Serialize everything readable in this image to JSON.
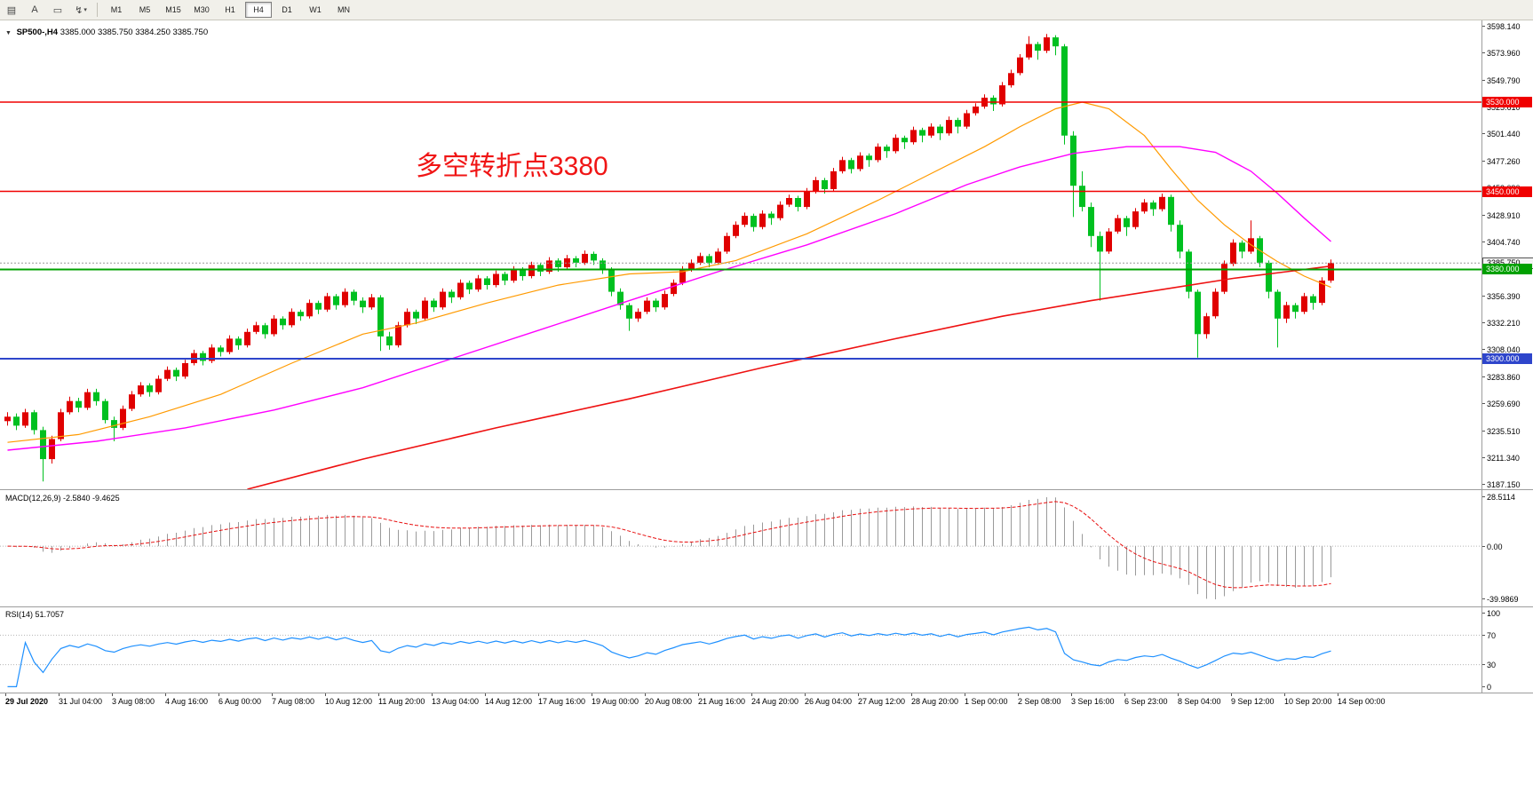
{
  "toolbar": {
    "icons": [
      {
        "name": "chart-grid-icon",
        "glyph": "▤"
      },
      {
        "name": "text-tool-icon",
        "glyph": "A"
      },
      {
        "name": "frame-tool-icon",
        "glyph": "▭"
      },
      {
        "name": "zigzag-indicator-icon",
        "glyph": "↯"
      }
    ],
    "zigzag_caret": "▾",
    "timeframes": [
      {
        "label": "M1",
        "active": false
      },
      {
        "label": "M5",
        "active": false
      },
      {
        "label": "M15",
        "active": false
      },
      {
        "label": "M30",
        "active": false
      },
      {
        "label": "H1",
        "active": false
      },
      {
        "label": "H4",
        "active": true
      },
      {
        "label": "D1",
        "active": false
      },
      {
        "label": "W1",
        "active": false
      },
      {
        "label": "MN",
        "active": false
      }
    ]
  },
  "chart": {
    "collapse_glyph": "▼",
    "symbol_tf": "SP500-,H4",
    "ohlc": "3385.000 3385.750 3384.250 3385.750",
    "annotation": {
      "text": "多空转折点3380",
      "color": "#f01515"
    }
  },
  "chart_data": {
    "type": "candlestick",
    "symbol": "SP500-",
    "timeframe": "H4",
    "current": {
      "open": 3385.0,
      "high": 3385.75,
      "low": 3384.25,
      "close": 3385.75
    },
    "y_range": [
      3183,
      3604
    ],
    "price_axis_labels": [
      "3598.140",
      "3573.960",
      "3549.790",
      "3525.610",
      "3501.440",
      "3477.260",
      "3453.090",
      "3428.910",
      "3404.740",
      "3380.560",
      "3356.390",
      "3332.210",
      "3308.040",
      "3283.860",
      "3259.690",
      "3235.510",
      "3211.340",
      "3187.150"
    ],
    "time_axis_labels": [
      "29 Jul 2020",
      "31 Jul 04:00",
      "3 Aug 08:00",
      "4 Aug 16:00",
      "6 Aug 00:00",
      "7 Aug 08:00",
      "10 Aug 12:00",
      "11 Aug 20:00",
      "13 Aug 04:00",
      "14 Aug 12:00",
      "17 Aug 16:00",
      "19 Aug 00:00",
      "20 Aug 08:00",
      "21 Aug 16:00",
      "24 Aug 20:00",
      "26 Aug 04:00",
      "27 Aug 12:00",
      "28 Aug 20:00",
      "1 Sep 00:00",
      "2 Sep 08:00",
      "3 Sep 16:00",
      "6 Sep 23:00",
      "8 Sep 04:00",
      "9 Sep 12:00",
      "10 Sep 20:00",
      "14 Sep 00:00"
    ],
    "colors": {
      "bull": "#e00000",
      "bear": "#00c020",
      "ma_fast": "#ff9a00",
      "ma_mid": "#ff00ff",
      "ma_slow": "#ee1111",
      "macd_hist": "#9a9a9a",
      "macd_signal": "#e81010",
      "rsi": "#1e90ff"
    },
    "hlines": [
      {
        "label": "3530.000",
        "price": 3530,
        "color": "#f00000",
        "width": 1.6
      },
      {
        "label": "3450.000",
        "price": 3450,
        "color": "#f00000",
        "width": 1.6
      },
      {
        "label": "3380.000",
        "price": 3380,
        "color": "#00a000",
        "width": 2
      },
      {
        "label": "3300.000",
        "price": 3300,
        "color": "#2e45cb",
        "width": 2
      }
    ],
    "bid": {
      "label": "3385.750",
      "price": 3385.75
    },
    "candles": [
      [
        3244,
        3252,
        3240,
        3248
      ],
      [
        3248,
        3251,
        3236,
        3240
      ],
      [
        3240,
        3255,
        3238,
        3252
      ],
      [
        3252,
        3254,
        3232,
        3236
      ],
      [
        3236,
        3239,
        3190,
        3210
      ],
      [
        3210,
        3231,
        3206,
        3228
      ],
      [
        3228,
        3255,
        3226,
        3252
      ],
      [
        3252,
        3266,
        3250,
        3262
      ],
      [
        3262,
        3265,
        3252,
        3256
      ],
      [
        3256,
        3273,
        3254,
        3270
      ],
      [
        3270,
        3273,
        3258,
        3262
      ],
      [
        3262,
        3264,
        3242,
        3245
      ],
      [
        3245,
        3248,
        3226,
        3238
      ],
      [
        3238,
        3258,
        3236,
        3255
      ],
      [
        3255,
        3271,
        3253,
        3268
      ],
      [
        3268,
        3279,
        3266,
        3276
      ],
      [
        3276,
        3278,
        3266,
        3270
      ],
      [
        3270,
        3285,
        3268,
        3282
      ],
      [
        3282,
        3293,
        3280,
        3290
      ],
      [
        3290,
        3292,
        3280,
        3284
      ],
      [
        3284,
        3299,
        3282,
        3296
      ],
      [
        3296,
        3308,
        3294,
        3305
      ],
      [
        3305,
        3307,
        3294,
        3298
      ],
      [
        3298,
        3313,
        3296,
        3310
      ],
      [
        3310,
        3312,
        3302,
        3306
      ],
      [
        3306,
        3321,
        3304,
        3318
      ],
      [
        3318,
        3320,
        3308,
        3312
      ],
      [
        3312,
        3327,
        3310,
        3324
      ],
      [
        3324,
        3333,
        3322,
        3330
      ],
      [
        3330,
        3332,
        3318,
        3322
      ],
      [
        3322,
        3339,
        3320,
        3336
      ],
      [
        3336,
        3338,
        3326,
        3330
      ],
      [
        3330,
        3345,
        3328,
        3342
      ],
      [
        3342,
        3344,
        3334,
        3338
      ],
      [
        3338,
        3353,
        3336,
        3350
      ],
      [
        3350,
        3352,
        3340,
        3344
      ],
      [
        3344,
        3359,
        3342,
        3356
      ],
      [
        3356,
        3358,
        3344,
        3348
      ],
      [
        3348,
        3363,
        3346,
        3360
      ],
      [
        3360,
        3362,
        3348,
        3352
      ],
      [
        3352,
        3355,
        3341,
        3346
      ],
      [
        3346,
        3358,
        3344,
        3355
      ],
      [
        3355,
        3357,
        3307,
        3320
      ],
      [
        3320,
        3324,
        3308,
        3312
      ],
      [
        3312,
        3333,
        3310,
        3330
      ],
      [
        3330,
        3345,
        3328,
        3342
      ],
      [
        3342,
        3344,
        3331,
        3336
      ],
      [
        3336,
        3355,
        3334,
        3352
      ],
      [
        3352,
        3354,
        3342,
        3346
      ],
      [
        3346,
        3363,
        3344,
        3360
      ],
      [
        3360,
        3362,
        3350,
        3355
      ],
      [
        3355,
        3371,
        3353,
        3368
      ],
      [
        3368,
        3370,
        3358,
        3362
      ],
      [
        3362,
        3375,
        3360,
        3372
      ],
      [
        3372,
        3374,
        3362,
        3366
      ],
      [
        3366,
        3379,
        3364,
        3376
      ],
      [
        3376,
        3378,
        3366,
        3370
      ],
      [
        3370,
        3383,
        3368,
        3380
      ],
      [
        3380,
        3382,
        3370,
        3374
      ],
      [
        3374,
        3387,
        3372,
        3384
      ],
      [
        3384,
        3386,
        3374,
        3378
      ],
      [
        3378,
        3391,
        3376,
        3388
      ],
      [
        3388,
        3390,
        3378,
        3382
      ],
      [
        3382,
        3393,
        3380,
        3390
      ],
      [
        3390,
        3392,
        3382,
        3386
      ],
      [
        3386,
        3397,
        3384,
        3394
      ],
      [
        3394,
        3396,
        3384,
        3388
      ],
      [
        3388,
        3390,
        3376,
        3380
      ],
      [
        3380,
        3382,
        3356,
        3360
      ],
      [
        3360,
        3363,
        3344,
        3348
      ],
      [
        3348,
        3350,
        3325,
        3336
      ],
      [
        3336,
        3345,
        3333,
        3342
      ],
      [
        3342,
        3355,
        3340,
        3352
      ],
      [
        3352,
        3354,
        3342,
        3346
      ],
      [
        3346,
        3361,
        3344,
        3358
      ],
      [
        3358,
        3371,
        3356,
        3368
      ],
      [
        3368,
        3383,
        3366,
        3380
      ],
      [
        3380,
        3389,
        3378,
        3386
      ],
      [
        3386,
        3395,
        3384,
        3392
      ],
      [
        3392,
        3394,
        3382,
        3386
      ],
      [
        3386,
        3399,
        3384,
        3396
      ],
      [
        3396,
        3413,
        3394,
        3410
      ],
      [
        3410,
        3423,
        3408,
        3420
      ],
      [
        3420,
        3431,
        3418,
        3428
      ],
      [
        3428,
        3430,
        3414,
        3418
      ],
      [
        3418,
        3433,
        3416,
        3430
      ],
      [
        3430,
        3432,
        3420,
        3426
      ],
      [
        3426,
        3441,
        3424,
        3438
      ],
      [
        3438,
        3447,
        3436,
        3444
      ],
      [
        3444,
        3446,
        3432,
        3436
      ],
      [
        3436,
        3453,
        3434,
        3450
      ],
      [
        3450,
        3463,
        3448,
        3460
      ],
      [
        3460,
        3462,
        3448,
        3452
      ],
      [
        3452,
        3471,
        3450,
        3468
      ],
      [
        3468,
        3481,
        3466,
        3478
      ],
      [
        3478,
        3480,
        3466,
        3470
      ],
      [
        3470,
        3485,
        3468,
        3482
      ],
      [
        3482,
        3484,
        3472,
        3478
      ],
      [
        3478,
        3493,
        3476,
        3490
      ],
      [
        3490,
        3492,
        3480,
        3486
      ],
      [
        3486,
        3501,
        3484,
        3498
      ],
      [
        3498,
        3500,
        3488,
        3494
      ],
      [
        3494,
        3508,
        3492,
        3505
      ],
      [
        3505,
        3507,
        3494,
        3500
      ],
      [
        3500,
        3511,
        3498,
        3508
      ],
      [
        3508,
        3510,
        3496,
        3502
      ],
      [
        3502,
        3517,
        3500,
        3514
      ],
      [
        3514,
        3516,
        3502,
        3508
      ],
      [
        3508,
        3523,
        3506,
        3520
      ],
      [
        3520,
        3529,
        3518,
        3526
      ],
      [
        3526,
        3537,
        3524,
        3534
      ],
      [
        3534,
        3536,
        3522,
        3528
      ],
      [
        3528,
        3548,
        3526,
        3545
      ],
      [
        3545,
        3559,
        3543,
        3556
      ],
      [
        3556,
        3573,
        3554,
        3570
      ],
      [
        3570,
        3589,
        3568,
        3582
      ],
      [
        3582,
        3584,
        3568,
        3576
      ],
      [
        3576,
        3591,
        3574,
        3588
      ],
      [
        3588,
        3590,
        3572,
        3580
      ],
      [
        3580,
        3582,
        3492,
        3500
      ],
      [
        3500,
        3504,
        3427,
        3455
      ],
      [
        3455,
        3468,
        3432,
        3436
      ],
      [
        3436,
        3440,
        3400,
        3410
      ],
      [
        3410,
        3414,
        3352,
        3396
      ],
      [
        3396,
        3417,
        3394,
        3414
      ],
      [
        3414,
        3429,
        3412,
        3426
      ],
      [
        3426,
        3428,
        3410,
        3418
      ],
      [
        3418,
        3435,
        3416,
        3432
      ],
      [
        3432,
        3443,
        3430,
        3440
      ],
      [
        3440,
        3442,
        3428,
        3434
      ],
      [
        3434,
        3448,
        3432,
        3445
      ],
      [
        3445,
        3447,
        3414,
        3420
      ],
      [
        3420,
        3424,
        3390,
        3396
      ],
      [
        3396,
        3398,
        3354,
        3360
      ],
      [
        3360,
        3362,
        3301,
        3322
      ],
      [
        3322,
        3341,
        3318,
        3338
      ],
      [
        3338,
        3363,
        3336,
        3360
      ],
      [
        3360,
        3388,
        3358,
        3385
      ],
      [
        3385,
        3407,
        3383,
        3404
      ],
      [
        3404,
        3406,
        3390,
        3396
      ],
      [
        3396,
        3424,
        3394,
        3408
      ],
      [
        3408,
        3410,
        3382,
        3386
      ],
      [
        3386,
        3388,
        3354,
        3360
      ],
      [
        3360,
        3362,
        3310,
        3336
      ],
      [
        3336,
        3351,
        3332,
        3348
      ],
      [
        3348,
        3350,
        3336,
        3342
      ],
      [
        3342,
        3359,
        3340,
        3356
      ],
      [
        3356,
        3358,
        3344,
        3350
      ],
      [
        3350,
        3373,
        3348,
        3370
      ],
      [
        3370,
        3389,
        3368,
        3385.75
      ]
    ],
    "ma_lines": [
      {
        "name": "ma-fast-orange",
        "color": "#ff9a00",
        "width": 1.2,
        "points": [
          [
            0,
            3225
          ],
          [
            8,
            3232
          ],
          [
            16,
            3248
          ],
          [
            24,
            3268
          ],
          [
            32,
            3296
          ],
          [
            40,
            3322
          ],
          [
            46,
            3332
          ],
          [
            54,
            3350
          ],
          [
            62,
            3366
          ],
          [
            70,
            3376
          ],
          [
            76,
            3378
          ],
          [
            82,
            3388
          ],
          [
            90,
            3412
          ],
          [
            98,
            3442
          ],
          [
            104,
            3466
          ],
          [
            110,
            3490
          ],
          [
            114,
            3508
          ],
          [
            118,
            3524
          ],
          [
            121,
            3530
          ],
          [
            124,
            3524
          ],
          [
            128,
            3500
          ],
          [
            131,
            3470
          ],
          [
            134,
            3442
          ],
          [
            137,
            3420
          ],
          [
            140,
            3402
          ],
          [
            143,
            3387
          ],
          [
            146,
            3374
          ],
          [
            149,
            3364
          ]
        ]
      },
      {
        "name": "ma-mid-magenta",
        "color": "#ff00ff",
        "width": 1.4,
        "points": [
          [
            0,
            3218
          ],
          [
            10,
            3226
          ],
          [
            20,
            3238
          ],
          [
            30,
            3254
          ],
          [
            40,
            3274
          ],
          [
            50,
            3300
          ],
          [
            60,
            3326
          ],
          [
            70,
            3352
          ],
          [
            80,
            3378
          ],
          [
            90,
            3402
          ],
          [
            100,
            3430
          ],
          [
            108,
            3456
          ],
          [
            114,
            3472
          ],
          [
            120,
            3484
          ],
          [
            126,
            3490
          ],
          [
            132,
            3490
          ],
          [
            136,
            3485
          ],
          [
            140,
            3468
          ],
          [
            143,
            3448
          ],
          [
            146,
            3426
          ],
          [
            149,
            3405
          ]
        ]
      },
      {
        "name": "ma-slow-red",
        "color": "#ee1111",
        "width": 1.6,
        "points": [
          [
            27,
            3183
          ],
          [
            40,
            3210
          ],
          [
            55,
            3238
          ],
          [
            70,
            3264
          ],
          [
            85,
            3292
          ],
          [
            100,
            3318
          ],
          [
            112,
            3338
          ],
          [
            122,
            3352
          ],
          [
            130,
            3362
          ],
          [
            138,
            3372
          ],
          [
            144,
            3378
          ],
          [
            149,
            3383
          ]
        ]
      }
    ],
    "indicators": {
      "macd": {
        "label": "MACD(12,26,9) -2.5840 -9.4625",
        "fast": 12,
        "slow": 26,
        "signal": 9,
        "value": -2.584,
        "signal_value": -9.4625,
        "axis_labels": [
          "28.5114",
          "0.00",
          "-39.9869"
        ]
      },
      "rsi": {
        "label": "RSI(14) 51.7057",
        "period": 14,
        "value": 51.7057,
        "levels": [
          70,
          30
        ],
        "axis_labels": [
          "100",
          "70",
          "30",
          "0"
        ]
      }
    }
  }
}
